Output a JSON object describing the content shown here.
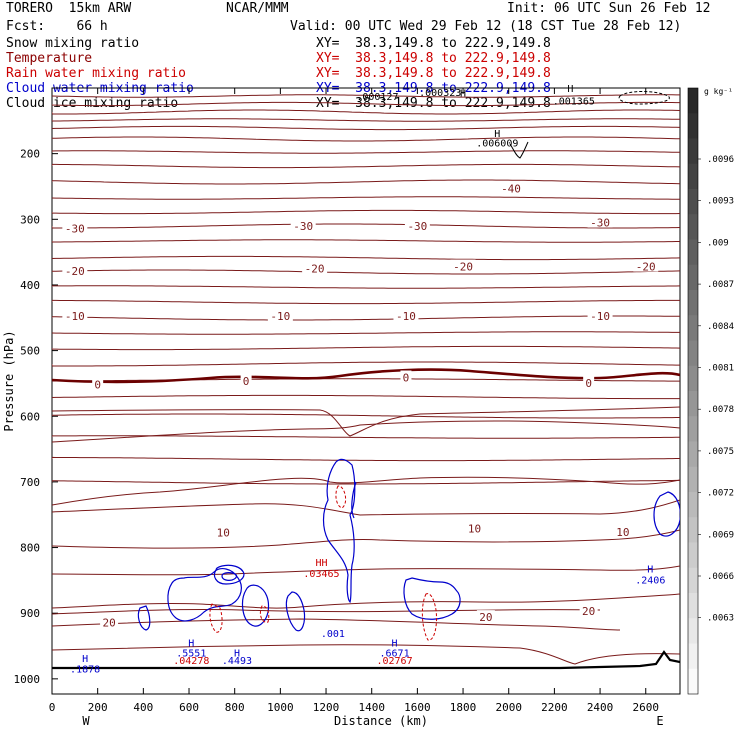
{
  "header": {
    "model": "TORERO  15km ARW",
    "org": "NCAR/MMM",
    "init": "Init: 06 UTC Sun 26 Feb 12",
    "fcst": "Fcst:    66 h",
    "valid": "Valid: 00 UTC Wed 29 Feb 12 (18 CST Tue 28 Feb 12)"
  },
  "fields": [
    {
      "name": "Snow mixing ratio",
      "xy": "XY=  38.3,149.8 to 222.9,149.8",
      "color": "#000000"
    },
    {
      "name": "Temperature",
      "xy": "XY=  38.3,149.8 to 222.9,149.8",
      "color": "#8b0000"
    },
    {
      "name": "Rain water mixing ratio",
      "xy": "XY=  38.3,149.8 to 222.9,149.8",
      "color": "#cc0000"
    },
    {
      "name": "Cloud water mixing ratio",
      "xy": "XY=  38.3,149.8 to 222.9,149.8",
      "color": "#0000cc"
    },
    {
      "name": "Cloud ice mixing ratio",
      "xy": "XY=  38.3,149.8 to 222.9,149.8",
      "color": "#000000"
    }
  ],
  "chart_data": {
    "type": "contour",
    "xlabel": "Distance (km)",
    "ylabel": "Pressure (hPa)",
    "xlim": [
      0,
      2750
    ],
    "ylim": [
      1050,
      100
    ],
    "x_ticks": [
      0,
      200,
      400,
      600,
      800,
      1000,
      1200,
      1400,
      1600,
      1800,
      2000,
      2200,
      2400,
      2600
    ],
    "y_ticks": [
      200,
      300,
      400,
      500,
      600,
      700,
      800,
      900,
      1000
    ],
    "x_end_labels": {
      "left": "W",
      "right": "E"
    },
    "colorbar": {
      "unit": "g kg⁻¹",
      "tick_labels": [
        ".0096",
        ".0093",
        ".009",
        ".0087",
        ".0084",
        ".0081",
        ".0078",
        ".0075",
        ".0072",
        ".0069",
        ".0066",
        ".0063"
      ]
    },
    "temperature_contours": [
      {
        "level": "-40",
        "labels": [
          {
            "x": 2010,
            "p": 253
          }
        ]
      },
      {
        "level": "-30",
        "labels": [
          {
            "x": 100,
            "p": 314
          },
          {
            "x": 1100,
            "p": 310
          },
          {
            "x": 1600,
            "p": 310
          },
          {
            "x": 2400,
            "p": 305
          }
        ]
      },
      {
        "level": "-20",
        "labels": [
          {
            "x": 100,
            "p": 379
          },
          {
            "x": 1150,
            "p": 375
          },
          {
            "x": 1800,
            "p": 372
          },
          {
            "x": 2600,
            "p": 372
          }
        ]
      },
      {
        "level": "-10",
        "labels": [
          {
            "x": 100,
            "p": 447
          },
          {
            "x": 1000,
            "p": 447
          },
          {
            "x": 1550,
            "p": 447
          },
          {
            "x": 2400,
            "p": 447
          }
        ]
      },
      {
        "level": "0",
        "labels": [
          {
            "x": 200,
            "p": 552
          },
          {
            "x": 850,
            "p": 546
          },
          {
            "x": 1550,
            "p": 541
          },
          {
            "x": 2350,
            "p": 549
          }
        ]
      },
      {
        "level": "10",
        "labels": [
          {
            "x": 750,
            "p": 777
          },
          {
            "x": 1850,
            "p": 771
          },
          {
            "x": 2500,
            "p": 776
          }
        ]
      },
      {
        "level": "20",
        "labels": [
          {
            "x": 250,
            "p": 914
          },
          {
            "x": 1900,
            "p": 906
          },
          {
            "x": 2350,
            "p": 897
          }
        ]
      }
    ],
    "extrema_labels": [
      {
        "text": "H",
        "x": 1800,
        "p": 113,
        "color": "#000000"
      },
      {
        "text": ".000127",
        "x": 1425,
        "p": 118,
        "color": "#000000"
      },
      {
        "text": ".000323",
        "x": 1700,
        "p": 112,
        "color": "#000000"
      },
      {
        "text": "H",
        "x": 2270,
        "p": 106,
        "color": "#000000"
      },
      {
        "text": ".001365",
        "x": 2285,
        "p": 125,
        "color": "#000000"
      },
      {
        "text": "H",
        "x": 1950,
        "p": 175,
        "color": "#000000"
      },
      {
        "text": ".006009",
        "x": 1950,
        "p": 189,
        "color": "#000000"
      },
      {
        "text": "H",
        "x": 2620,
        "p": 838,
        "color": "#0000cc"
      },
      {
        "text": ".2406",
        "x": 2620,
        "p": 855,
        "color": "#0000cc"
      },
      {
        "text": "HH",
        "x": 1180,
        "p": 828,
        "color": "#cc0000"
      },
      {
        "text": ".03465",
        "x": 1180,
        "p": 845,
        "color": "#cc0000"
      },
      {
        "text": ".001",
        "x": 1230,
        "p": 936,
        "color": "#0000cc"
      },
      {
        "text": "H",
        "x": 145,
        "p": 974,
        "color": "#0000cc"
      },
      {
        "text": ".1878",
        "x": 145,
        "p": 990,
        "color": "#0000cc"
      },
      {
        "text": "H",
        "x": 610,
        "p": 951,
        "color": "#0000cc"
      },
      {
        "text": ".5551",
        "x": 610,
        "p": 966,
        "color": "#0000cc"
      },
      {
        "text": ".04278",
        "x": 610,
        "p": 977,
        "color": "#cc0000"
      },
      {
        "text": "H",
        "x": 810,
        "p": 966,
        "color": "#0000cc"
      },
      {
        "text": ".4493",
        "x": 810,
        "p": 977,
        "color": "#0000cc"
      },
      {
        "text": "H",
        "x": 1500,
        "p": 951,
        "color": "#0000cc"
      },
      {
        "text": ".6671",
        "x": 1500,
        "p": 966,
        "color": "#0000cc"
      },
      {
        "text": ".02767",
        "x": 1500,
        "p": 977,
        "color": "#cc0000"
      }
    ]
  }
}
